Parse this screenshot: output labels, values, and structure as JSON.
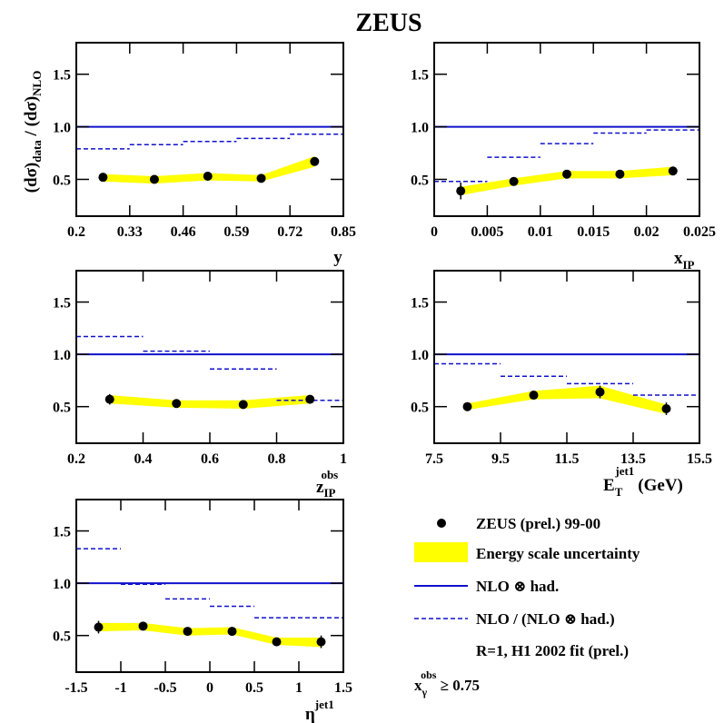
{
  "figure": {
    "title": "ZEUS",
    "ylabel": "(dσ)_data / (dσ)_NLO"
  },
  "legend": {
    "data_label": "ZEUS (prel.) 99-00",
    "band_label": "Energy scale uncertainty",
    "nlo_had_label": "NLO ⊗ had.",
    "ratio_label": "NLO / (NLO ⊗ had.)",
    "note": "R=1,  H1 2002 fit (prel.)",
    "cut": "x_γ^obs ≥ 0.75"
  },
  "colors": {
    "line": "#1010cc",
    "band": "#ffff00",
    "points": "#000000"
  },
  "chart_data": [
    {
      "type": "scatter",
      "xlabel": "y",
      "xlim": [
        0.2,
        0.85
      ],
      "ylim": [
        0.15,
        1.8
      ],
      "xticks": [
        "0.2",
        "0.33",
        "0.46",
        "0.59",
        "0.72",
        "0.85"
      ],
      "xtick_values": [
        0.2,
        0.33,
        0.46,
        0.59,
        0.72,
        0.85
      ],
      "yticks": [
        "0.5",
        "1.0",
        "1.5"
      ],
      "ytick_values": [
        0.5,
        1.0,
        1.5
      ],
      "nlo_had": 1.0,
      "points": {
        "x": [
          0.265,
          0.39,
          0.52,
          0.65,
          0.78
        ],
        "y": [
          0.52,
          0.5,
          0.53,
          0.51,
          0.67
        ],
        "err": [
          0.02,
          0.02,
          0.02,
          0.02,
          0.02
        ]
      },
      "band": {
        "x": [
          0.265,
          0.39,
          0.52,
          0.65,
          0.78
        ],
        "lo": [
          0.48,
          0.46,
          0.49,
          0.48,
          0.62
        ],
        "hi": [
          0.55,
          0.53,
          0.56,
          0.54,
          0.72
        ]
      },
      "hadronisation": [
        [
          0.2,
          0.33,
          0.79
        ],
        [
          0.33,
          0.46,
          0.83
        ],
        [
          0.46,
          0.59,
          0.86
        ],
        [
          0.59,
          0.72,
          0.89
        ],
        [
          0.72,
          0.85,
          0.93
        ]
      ]
    },
    {
      "type": "scatter",
      "xlabel": "x_IP",
      "xlim": [
        0,
        0.025
      ],
      "ylim": [
        0.15,
        1.8
      ],
      "xticks": [
        "0",
        "0.005",
        "0.01",
        "0.015",
        "0.02",
        "0.025"
      ],
      "xtick_values": [
        0,
        0.005,
        0.01,
        0.015,
        0.02,
        0.025
      ],
      "yticks": [
        "0.5",
        "1.0",
        "1.5"
      ],
      "ytick_values": [
        0.5,
        1.0,
        1.5
      ],
      "nlo_had": 1.0,
      "points": {
        "x": [
          0.0025,
          0.0075,
          0.0125,
          0.0175,
          0.0225
        ],
        "y": [
          0.39,
          0.48,
          0.55,
          0.55,
          0.58
        ],
        "err": [
          0.08,
          0.03,
          0.03,
          0.03,
          0.03
        ]
      },
      "band": {
        "x": [
          0.0025,
          0.0075,
          0.0125,
          0.0175,
          0.0225
        ],
        "lo": [
          0.35,
          0.44,
          0.51,
          0.51,
          0.54
        ],
        "hi": [
          0.43,
          0.51,
          0.58,
          0.58,
          0.62
        ]
      },
      "hadronisation": [
        [
          0,
          0.005,
          0.48
        ],
        [
          0.005,
          0.01,
          0.71
        ],
        [
          0.01,
          0.015,
          0.84
        ],
        [
          0.015,
          0.02,
          0.94
        ],
        [
          0.02,
          0.025,
          0.97
        ]
      ]
    },
    {
      "type": "scatter",
      "xlabel": "z_IP^obs",
      "xlim": [
        0.2,
        1.0
      ],
      "ylim": [
        0.15,
        1.8
      ],
      "xticks": [
        "0.2",
        "0.4",
        "0.6",
        "0.8",
        "1"
      ],
      "xtick_values": [
        0.2,
        0.4,
        0.6,
        0.8,
        1.0
      ],
      "yticks": [
        "0.5",
        "1.0",
        "1.5"
      ],
      "ytick_values": [
        0.5,
        1.0,
        1.5
      ],
      "nlo_had": 1.0,
      "points": {
        "x": [
          0.3,
          0.5,
          0.7,
          0.9
        ],
        "y": [
          0.57,
          0.53,
          0.52,
          0.57
        ],
        "err": [
          0.05,
          0.03,
          0.03,
          0.03
        ]
      },
      "band": {
        "x": [
          0.3,
          0.5,
          0.7,
          0.9
        ],
        "lo": [
          0.53,
          0.49,
          0.48,
          0.53
        ],
        "hi": [
          0.61,
          0.56,
          0.56,
          0.61
        ]
      },
      "hadronisation": [
        [
          0.2,
          0.4,
          1.17
        ],
        [
          0.4,
          0.6,
          1.03
        ],
        [
          0.6,
          0.8,
          0.86
        ],
        [
          0.8,
          1.0,
          0.56
        ]
      ]
    },
    {
      "type": "scatter",
      "xlabel": "E_T^jet1 (GeV)",
      "xlim": [
        7.5,
        15.5
      ],
      "ylim": [
        0.15,
        1.8
      ],
      "xticks": [
        "7.5",
        "9.5",
        "11.5",
        "13.5",
        "15.5"
      ],
      "xtick_values": [
        7.5,
        9.5,
        11.5,
        13.5,
        15.5
      ],
      "yticks": [
        "0.5",
        "1.0",
        "1.5"
      ],
      "ytick_values": [
        0.5,
        1.0,
        1.5
      ],
      "nlo_had": 1.0,
      "points": {
        "x": [
          8.5,
          10.5,
          12.5,
          14.5
        ],
        "y": [
          0.5,
          0.61,
          0.64,
          0.48
        ],
        "err": [
          0.02,
          0.03,
          0.06,
          0.06
        ]
      },
      "band": {
        "x": [
          8.5,
          10.5,
          12.5,
          14.5
        ],
        "lo": [
          0.47,
          0.57,
          0.58,
          0.43
        ],
        "hi": [
          0.53,
          0.65,
          0.7,
          0.52
        ]
      },
      "hadronisation": [
        [
          7.5,
          9.5,
          0.91
        ],
        [
          9.5,
          11.5,
          0.79
        ],
        [
          11.5,
          13.5,
          0.72
        ],
        [
          13.5,
          15.5,
          0.61
        ]
      ]
    },
    {
      "type": "scatter",
      "xlabel": "η^jet1",
      "xlim": [
        -1.5,
        1.5
      ],
      "ylim": [
        0.15,
        1.8
      ],
      "xticks": [
        "-1.5",
        "-1",
        "-0.5",
        "0",
        "0.5",
        "1",
        "1.5"
      ],
      "xtick_values": [
        -1.5,
        -1,
        -0.5,
        0,
        0.5,
        1,
        1.5
      ],
      "yticks": [
        "0.5",
        "1.0",
        "1.5"
      ],
      "ytick_values": [
        0.5,
        1.0,
        1.5
      ],
      "nlo_had": 1.0,
      "points": {
        "x": [
          -1.25,
          -0.75,
          -0.25,
          0.25,
          0.75,
          1.25
        ],
        "y": [
          0.58,
          0.59,
          0.54,
          0.54,
          0.44,
          0.44
        ],
        "err": [
          0.06,
          0.03,
          0.03,
          0.03,
          0.03,
          0.06
        ]
      },
      "band": {
        "x": [
          -1.25,
          -0.75,
          -0.25,
          0.25,
          0.75,
          1.25
        ],
        "lo": [
          0.54,
          0.55,
          0.5,
          0.51,
          0.41,
          0.39
        ],
        "hi": [
          0.62,
          0.62,
          0.57,
          0.58,
          0.48,
          0.48
        ]
      },
      "hadronisation": [
        [
          -1.5,
          -1.0,
          1.33
        ],
        [
          -1.0,
          -0.5,
          0.99
        ],
        [
          -0.5,
          0.0,
          0.85
        ],
        [
          0.0,
          0.5,
          0.78
        ],
        [
          0.5,
          1.5,
          0.67
        ]
      ]
    }
  ]
}
